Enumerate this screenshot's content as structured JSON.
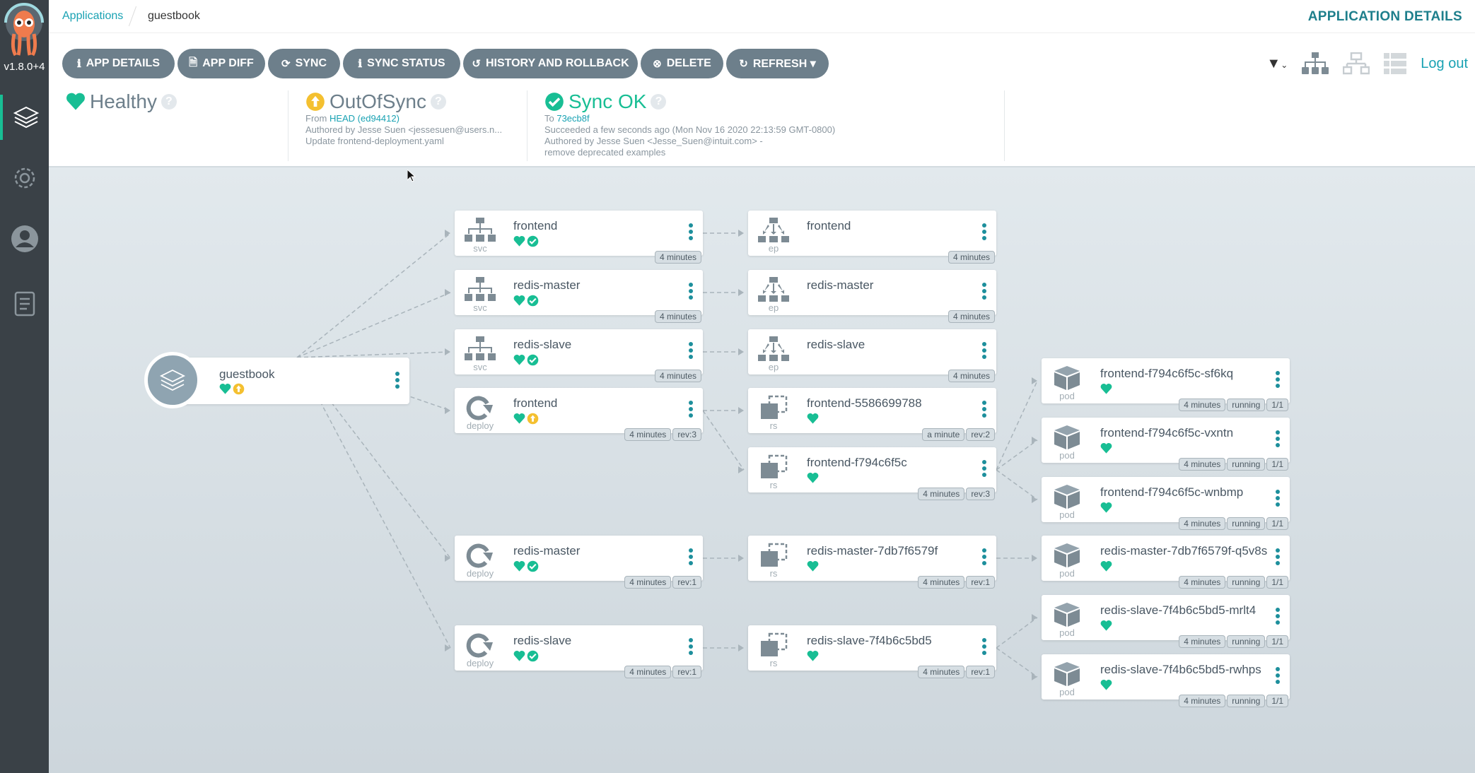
{
  "sidebar": {
    "version": "v1.8.0+4",
    "items": [
      {
        "name": "applications",
        "icon": "layers-icon",
        "active": true
      },
      {
        "name": "settings",
        "icon": "gear-icon"
      },
      {
        "name": "user-info",
        "icon": "user-icon"
      },
      {
        "name": "documentation",
        "icon": "docs-icon"
      }
    ]
  },
  "breadcrumb": {
    "parent": "Applications",
    "current": "guestbook"
  },
  "header": {
    "title": "APPLICATION DETAILS",
    "logout": "Log out"
  },
  "toolbar": [
    {
      "label": "APP DETAILS",
      "icon": "info-icon",
      "glyph": "ℹ"
    },
    {
      "label": "APP DIFF",
      "icon": "file-diff-icon",
      "glyph": "🗎"
    },
    {
      "label": "SYNC",
      "icon": "sync-icon",
      "glyph": "⟳"
    },
    {
      "label": "SYNC STATUS",
      "icon": "info-icon",
      "glyph": "ℹ"
    },
    {
      "label": "HISTORY AND ROLLBACK",
      "icon": "history-icon",
      "glyph": "↺"
    },
    {
      "label": "DELETE",
      "icon": "times-circle-icon",
      "glyph": "⊗"
    },
    {
      "label": "REFRESH ▾",
      "icon": "refresh-icon",
      "glyph": "↻"
    }
  ],
  "status": {
    "health": {
      "label": "Healthy"
    },
    "sync": {
      "label": "OutOfSync",
      "from_prefix": "From ",
      "from_ref": "HEAD (ed94412)",
      "author": "Authored by Jesse Suen <jessesuen@users.n...",
      "message": "Update frontend-deployment.yaml"
    },
    "operation": {
      "label": "Sync OK",
      "to_prefix": "To ",
      "to_ref": "73ecb8f",
      "result": "Succeeded a few seconds ago (Mon Nov 16 2020 22:13:59 GMT-0800)",
      "author": "Authored by Jesse Suen <Jesse_Suen@intuit.com> -",
      "message": "remove deprecated examples"
    }
  },
  "colors": {
    "healthy": "#18be94",
    "outofsync": "#f4c030",
    "accent": "#19a2b3",
    "button": "#6d7f8b"
  },
  "app": {
    "name": "guestbook",
    "health": "healthy",
    "sync": "outofsync"
  },
  "nodes": [
    {
      "id": "svc-frontend",
      "name": "frontend",
      "kind": "svc",
      "health": "healthy",
      "sync": "synced",
      "badges": [
        "4 minutes"
      ]
    },
    {
      "id": "svc-redis-master",
      "name": "redis-master",
      "kind": "svc",
      "health": "healthy",
      "sync": "synced",
      "badges": [
        "4 minutes"
      ]
    },
    {
      "id": "svc-redis-slave",
      "name": "redis-slave",
      "kind": "svc",
      "health": "healthy",
      "sync": "synced",
      "badges": [
        "4 minutes"
      ]
    },
    {
      "id": "deploy-frontend",
      "name": "frontend",
      "kind": "deploy",
      "health": "healthy",
      "sync": "outofsync",
      "badges": [
        "4 minutes",
        "rev:3"
      ]
    },
    {
      "id": "deploy-redis-master",
      "name": "redis-master",
      "kind": "deploy",
      "health": "healthy",
      "sync": "synced",
      "badges": [
        "4 minutes",
        "rev:1"
      ]
    },
    {
      "id": "deploy-redis-slave",
      "name": "redis-slave",
      "kind": "deploy",
      "health": "healthy",
      "sync": "synced",
      "badges": [
        "4 minutes",
        "rev:1"
      ]
    },
    {
      "id": "ep-frontend",
      "name": "frontend",
      "kind": "ep",
      "badges": [
        "4 minutes"
      ]
    },
    {
      "id": "ep-redis-master",
      "name": "redis-master",
      "kind": "ep",
      "badges": [
        "4 minutes"
      ]
    },
    {
      "id": "ep-redis-slave",
      "name": "redis-slave",
      "kind": "ep",
      "badges": [
        "4 minutes"
      ]
    },
    {
      "id": "rs-frontend-5586699788",
      "name": "frontend-5586699788",
      "kind": "rs",
      "health": "healthy",
      "badges": [
        "a minute",
        "rev:2"
      ]
    },
    {
      "id": "rs-frontend-f794c6f5c",
      "name": "frontend-f794c6f5c",
      "kind": "rs",
      "health": "healthy",
      "badges": [
        "4 minutes",
        "rev:3"
      ]
    },
    {
      "id": "rs-redis-master",
      "name": "redis-master-7db7f6579f",
      "kind": "rs",
      "health": "healthy",
      "badges": [
        "4 minutes",
        "rev:1"
      ]
    },
    {
      "id": "rs-redis-slave",
      "name": "redis-slave-7f4b6c5bd5",
      "kind": "rs",
      "health": "healthy",
      "badges": [
        "4 minutes",
        "rev:1"
      ]
    },
    {
      "id": "pod-1",
      "name": "frontend-f794c6f5c-sf6kq",
      "kind": "pod",
      "health": "healthy",
      "badges": [
        "4 minutes",
        "running",
        "1/1"
      ]
    },
    {
      "id": "pod-2",
      "name": "frontend-f794c6f5c-vxntn",
      "kind": "pod",
      "health": "healthy",
      "badges": [
        "4 minutes",
        "running",
        "1/1"
      ]
    },
    {
      "id": "pod-3",
      "name": "frontend-f794c6f5c-wnbmp",
      "kind": "pod",
      "health": "healthy",
      "badges": [
        "4 minutes",
        "running",
        "1/1"
      ]
    },
    {
      "id": "pod-4",
      "name": "redis-master-7db7f6579f-q5v8s",
      "kind": "pod",
      "health": "healthy",
      "badges": [
        "4 minutes",
        "running",
        "1/1"
      ]
    },
    {
      "id": "pod-5",
      "name": "redis-slave-7f4b6c5bd5-mrlt4",
      "kind": "pod",
      "health": "healthy",
      "badges": [
        "4 minutes",
        "running",
        "1/1"
      ]
    },
    {
      "id": "pod-6",
      "name": "redis-slave-7f4b6c5bd5-rwhps",
      "kind": "pod",
      "health": "healthy",
      "badges": [
        "4 minutes",
        "running",
        "1/1"
      ]
    }
  ],
  "edges": [
    [
      "app",
      "svc-frontend"
    ],
    [
      "app",
      "svc-redis-master"
    ],
    [
      "app",
      "svc-redis-slave"
    ],
    [
      "app",
      "deploy-frontend"
    ],
    [
      "app",
      "deploy-redis-master"
    ],
    [
      "app",
      "deploy-redis-slave"
    ],
    [
      "svc-frontend",
      "ep-frontend"
    ],
    [
      "svc-redis-master",
      "ep-redis-master"
    ],
    [
      "svc-redis-slave",
      "ep-redis-slave"
    ],
    [
      "deploy-frontend",
      "rs-frontend-5586699788"
    ],
    [
      "deploy-frontend",
      "rs-frontend-f794c6f5c"
    ],
    [
      "deploy-redis-master",
      "rs-redis-master"
    ],
    [
      "deploy-redis-slave",
      "rs-redis-slave"
    ],
    [
      "rs-frontend-f794c6f5c",
      "pod-1"
    ],
    [
      "rs-frontend-f794c6f5c",
      "pod-2"
    ],
    [
      "rs-frontend-f794c6f5c",
      "pod-3"
    ],
    [
      "rs-redis-master",
      "pod-4"
    ],
    [
      "rs-redis-slave",
      "pod-5"
    ],
    [
      "rs-redis-slave",
      "pod-6"
    ]
  ]
}
